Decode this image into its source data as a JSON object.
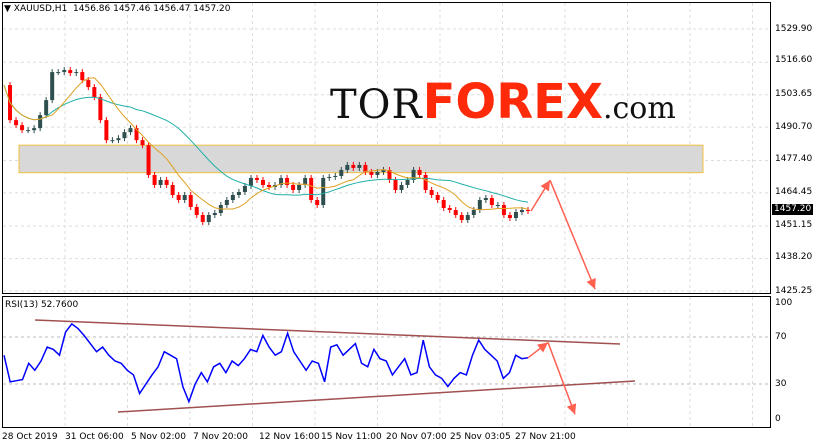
{
  "header": {
    "symbol": "XAUUSD,H1",
    "ohlc": "1456.86 1457.46 1456.47 1457.20"
  },
  "rsi": {
    "label": "RSI(13) 52.7600"
  },
  "current_price": "1457.20",
  "logo": {
    "tor": "TOR",
    "forex": "FOREX",
    ".com": ".com"
  },
  "colors": {
    "bull": "#2f4f4f",
    "bear": "#ff0000",
    "ma_fast": "#e0a020",
    "ma_slow": "#20b0a8",
    "rsi": "#0000ff",
    "trendline": "#a05050",
    "arrow": "#ff6050",
    "zone": "#d8d8d8",
    "zone_border": "#f0c040"
  },
  "chart_data": [
    {
      "type": "candlestick",
      "title": "XAUUSD,H1",
      "price_ticks": [
        "1529.90",
        "1516.60",
        "1503.65",
        "1490.70",
        "1477.40",
        "1464.45",
        "1451.15",
        "1438.20",
        "1425.25"
      ],
      "ylim": [
        1425.25,
        1529.9
      ],
      "time_ticks": [
        "28 Oct 2019",
        "31 Oct 06:00",
        "5 Nov 02:00",
        "7 Nov 20:00",
        "12 Nov 16:00",
        "15 Nov 11:00",
        "20 Nov 07:00",
        "25 Nov 03:05",
        "27 Nov 21:00"
      ],
      "closes": [
        1507.5,
        1493.5,
        1491.5,
        1489.5,
        1489.5,
        1490.3,
        1495.5,
        1501.5,
        1512.7,
        1512.7,
        1513.5,
        1512.3,
        1512.7,
        1509.5,
        1506.7,
        1502.7,
        1493.5,
        1485.5,
        1485.5,
        1486.3,
        1488.7,
        1490.3,
        1485.5,
        1483.5,
        1471.6,
        1467.6,
        1469.6,
        1467.6,
        1463.6,
        1461.6,
        1463.6,
        1458.8,
        1455.6,
        1452.8,
        1455.6,
        1456.4,
        1459.6,
        1461.6,
        1463.6,
        1464.8,
        1467.2,
        1470.4,
        1469.6,
        1467.6,
        1466.8,
        1467.6,
        1470.4,
        1467.6,
        1465.6,
        1467.6,
        1470.4,
        1461.6,
        1459.6,
        1470.4,
        1470.8,
        1471.2,
        1473.6,
        1475.6,
        1474.4,
        1475.6,
        1472.8,
        1471.6,
        1472.8,
        1473.6,
        1469.6,
        1465.6,
        1467.6,
        1469.6,
        1473.6,
        1471.6,
        1465.6,
        1463.6,
        1461.6,
        1458.4,
        1457.6,
        1455.6,
        1453.6,
        1455.6,
        1457.6,
        1461.6,
        1462.4,
        1459.6,
        1459.6,
        1455.6,
        1454.4,
        1456.8,
        1457.6,
        1457.2
      ],
      "zone": [
        1472.5,
        1483.5
      ],
      "forecast": [
        1457.2,
        1469.5,
        1426
      ]
    },
    {
      "type": "line",
      "title": "RSI(13) 52.7600",
      "ylim": [
        0,
        100
      ],
      "ticks": [
        "100",
        "70",
        "30",
        "0"
      ],
      "levels": [
        70,
        30
      ],
      "values": [
        55,
        32,
        33,
        34,
        48,
        42,
        50,
        62,
        60,
        55,
        75,
        82,
        78,
        72,
        65,
        58,
        62,
        55,
        50,
        48,
        42,
        38,
        22,
        30,
        38,
        45,
        58,
        55,
        52,
        28,
        15,
        30,
        40,
        32,
        45,
        48,
        40,
        50,
        46,
        52,
        60,
        58,
        72,
        62,
        55,
        58,
        74,
        58,
        50,
        42,
        50,
        48,
        32,
        62,
        64,
        55,
        60,
        65,
        48,
        45,
        60,
        52,
        50,
        38,
        45,
        52,
        38,
        40,
        68,
        45,
        38,
        35,
        28,
        35,
        40,
        38,
        55,
        68,
        60,
        55,
        50,
        35,
        40,
        55,
        52,
        52.76
      ],
      "trend_upper": [
        85,
        64
      ],
      "trend_lower": [
        12,
        32
      ],
      "forecast": [
        52.76,
        66,
        4
      ]
    }
  ]
}
